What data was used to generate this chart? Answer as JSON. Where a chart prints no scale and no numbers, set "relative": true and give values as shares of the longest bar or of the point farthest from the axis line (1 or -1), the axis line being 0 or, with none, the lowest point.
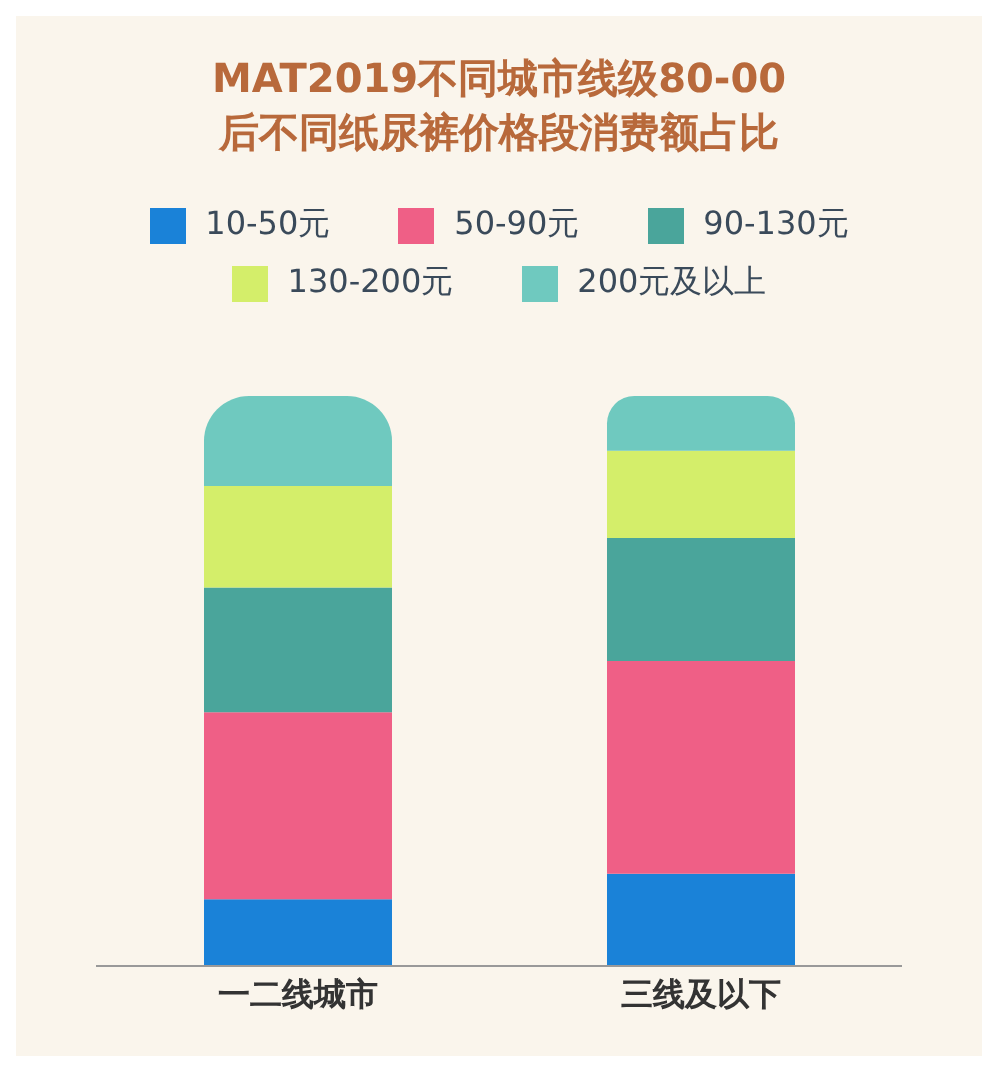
{
  "chart_data": {
    "type": "bar",
    "title": "MAT2019不同城市线级80-00后不同纸尿裤价格段消费额占比",
    "categories": [
      "一二线城市",
      "三线及以下"
    ],
    "stacked": true,
    "relative": true,
    "legend": "top",
    "series": [
      {
        "name": "10-50元",
        "color": "#1a82d8",
        "values": [
          0.117,
          0.162
        ]
      },
      {
        "name": "50-90元",
        "color": "#ef5f86",
        "values": [
          0.328,
          0.373
        ]
      },
      {
        "name": "90-130元",
        "color": "#4aa59b",
        "values": [
          0.219,
          0.216
        ]
      },
      {
        "name": "130-200元",
        "color": "#d4ee6a",
        "values": [
          0.178,
          0.153
        ]
      },
      {
        "name": "200元及以上",
        "color": "#6fc9bf",
        "values": [
          0.158,
          0.096
        ]
      }
    ]
  }
}
